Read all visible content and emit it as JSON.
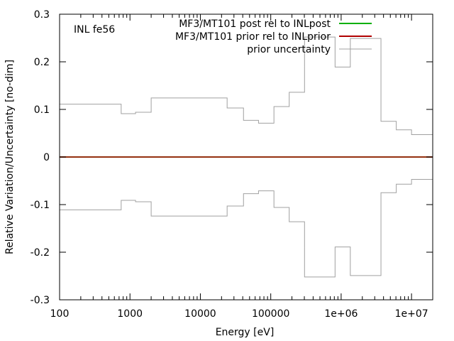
{
  "chart_data": {
    "type": "line",
    "xscale": "log",
    "xlim": [
      100,
      20000000
    ],
    "ylim": [
      -0.3,
      0.3
    ],
    "xlabel": "Energy [eV]",
    "ylabel": "Relative Variation/Uncertainty [no-dim]",
    "annotation": "INL fe56",
    "grid": false,
    "legend_position": "top-right",
    "x_ticks": [
      {
        "value": 100,
        "label": "100"
      },
      {
        "value": 1000,
        "label": "1000"
      },
      {
        "value": 10000,
        "label": "10000"
      },
      {
        "value": 100000,
        "label": "100000"
      },
      {
        "value": 1000000,
        "label": "1e+06"
      },
      {
        "value": 10000000,
        "label": "1e+07"
      }
    ],
    "y_ticks": [
      {
        "value": -0.3,
        "label": "-0.3"
      },
      {
        "value": -0.2,
        "label": "-0.2"
      },
      {
        "value": -0.1,
        "label": "-0.1"
      },
      {
        "value": 0,
        "label": "0"
      },
      {
        "value": 0.1,
        "label": "0.1"
      },
      {
        "value": 0.2,
        "label": "0.2"
      },
      {
        "value": 0.3,
        "label": "0.3"
      }
    ],
    "series": [
      {
        "name": "MF3/MT101 post rel to INLpost",
        "color": "#00b000",
        "style": "step",
        "x": [
          100,
          20000000
        ],
        "y": [
          0,
          0
        ]
      },
      {
        "name": "MF3/MT101 prior rel to INLprior",
        "color": "#b00000",
        "style": "step",
        "x": [
          100,
          20000000
        ],
        "y": [
          0,
          0
        ]
      },
      {
        "name": "prior uncertainty",
        "color": "#a0a0a0",
        "style": "step-symmetric",
        "x": [
          100,
          750,
          1200,
          2000,
          24000,
          41000,
          67000,
          111000,
          183000,
          302000,
          820000,
          1350000,
          3680000,
          6070000,
          10000000,
          20000000
        ],
        "y": [
          0.111,
          0.091,
          0.094,
          0.124,
          0.103,
          0.077,
          0.071,
          0.106,
          0.136,
          0.252,
          0.189,
          0.249,
          0.075,
          0.057,
          0.047,
          0.047
        ]
      }
    ]
  }
}
